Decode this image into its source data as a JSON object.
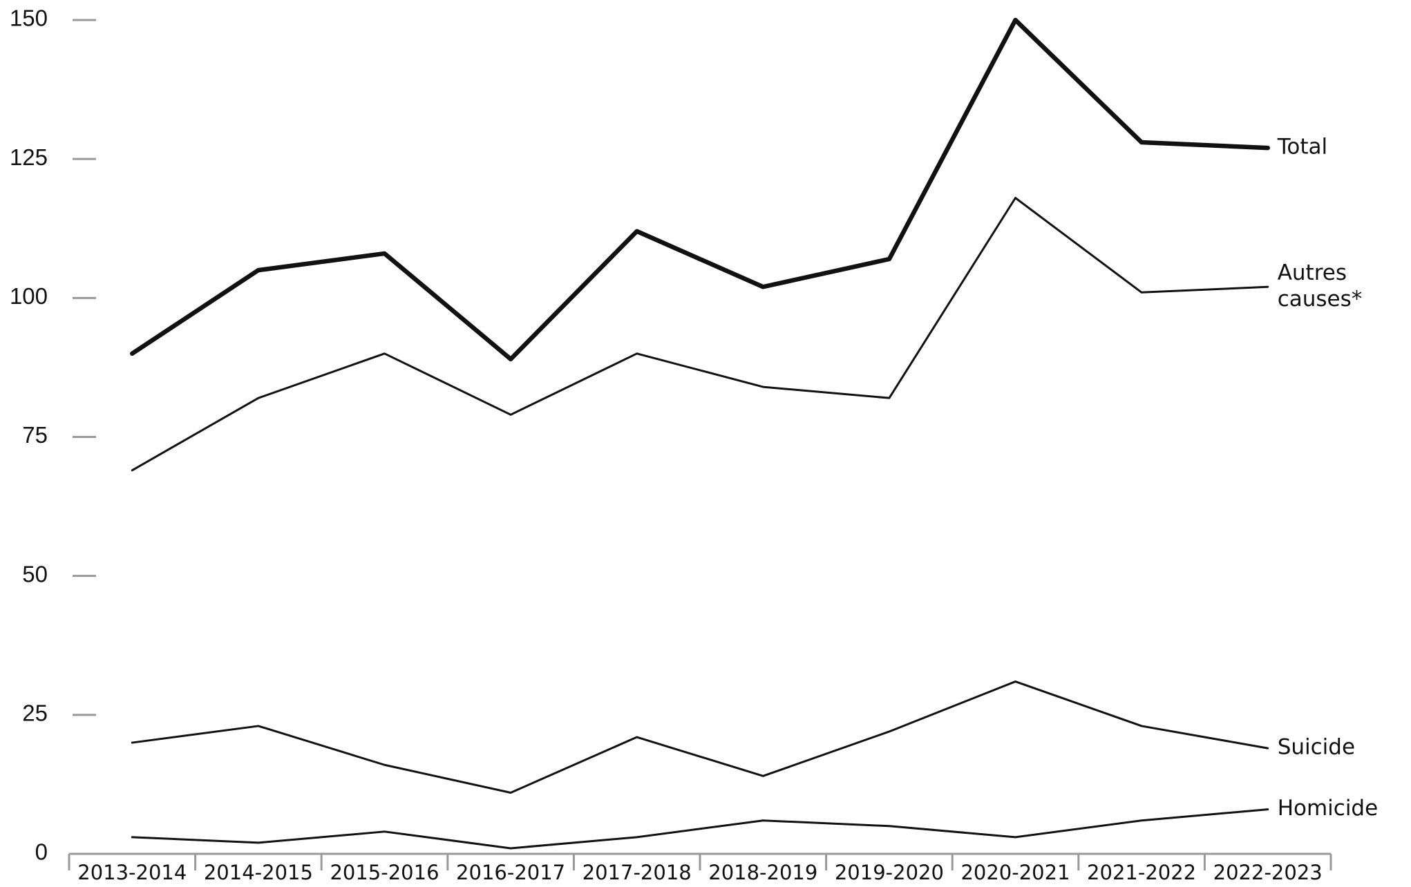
{
  "chart_data": {
    "type": "line",
    "categories": [
      "2013-2014",
      "2014-2015",
      "2015-2016",
      "2016-2017",
      "2017-2018",
      "2018-2019",
      "2019-2020",
      "2020-2021",
      "2021-2022",
      "2022-2023"
    ],
    "series": [
      {
        "name": "Total",
        "color": "#111111",
        "values": [
          90,
          105,
          108,
          89,
          112,
          102,
          107,
          150,
          128,
          127
        ]
      },
      {
        "name": "Autres causes*",
        "color": "#111111",
        "values": [
          69,
          82,
          90,
          79,
          90,
          84,
          82,
          118,
          101,
          102
        ]
      },
      {
        "name": "Suicide",
        "color": "#111111",
        "values": [
          20,
          23,
          16,
          11,
          21,
          14,
          22,
          31,
          23,
          19
        ]
      },
      {
        "name": "Homicide",
        "color": "#111111",
        "values": [
          3,
          2,
          4,
          1,
          3,
          6,
          5,
          3,
          6,
          8
        ]
      }
    ],
    "ylim": [
      0,
      150
    ],
    "yticks": [
      0,
      25,
      50,
      75,
      100,
      125,
      150
    ],
    "grid": false,
    "legend": "line-end"
  }
}
